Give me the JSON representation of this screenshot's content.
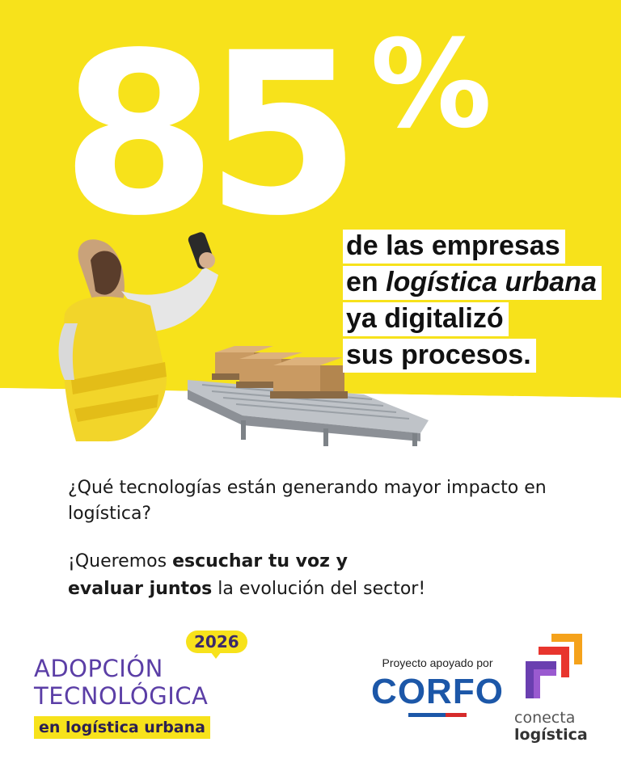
{
  "hero": {
    "stat_number": "85",
    "stat_symbol": "%",
    "headline_lines": [
      "de las empresas",
      "en ",
      "logística urbana",
      "ya digitalizó",
      "sus procesos."
    ]
  },
  "question": "¿Qué tecnologías están generando mayor impacto en logística?",
  "invite": {
    "part1": "¡Queremos ",
    "bold1": "escuchar tu voz y",
    "bold2": "evaluar juntos",
    "part2": " la evolución del sector!"
  },
  "campaign_logo": {
    "year": "2026",
    "line1": "ADOPCIÓN",
    "line2": "TECNOLÓGICA",
    "tag": "en logística urbana"
  },
  "sponsor": {
    "caption": "Proyecto apoyado por",
    "name": "CORFO"
  },
  "partner": {
    "line1": "conecta",
    "line2": "logística"
  },
  "colors": {
    "yellow": "#f7e21b",
    "purple": "#5b3ea6",
    "corfo_blue": "#1c57a8",
    "corfo_red": "#d62a2a"
  }
}
